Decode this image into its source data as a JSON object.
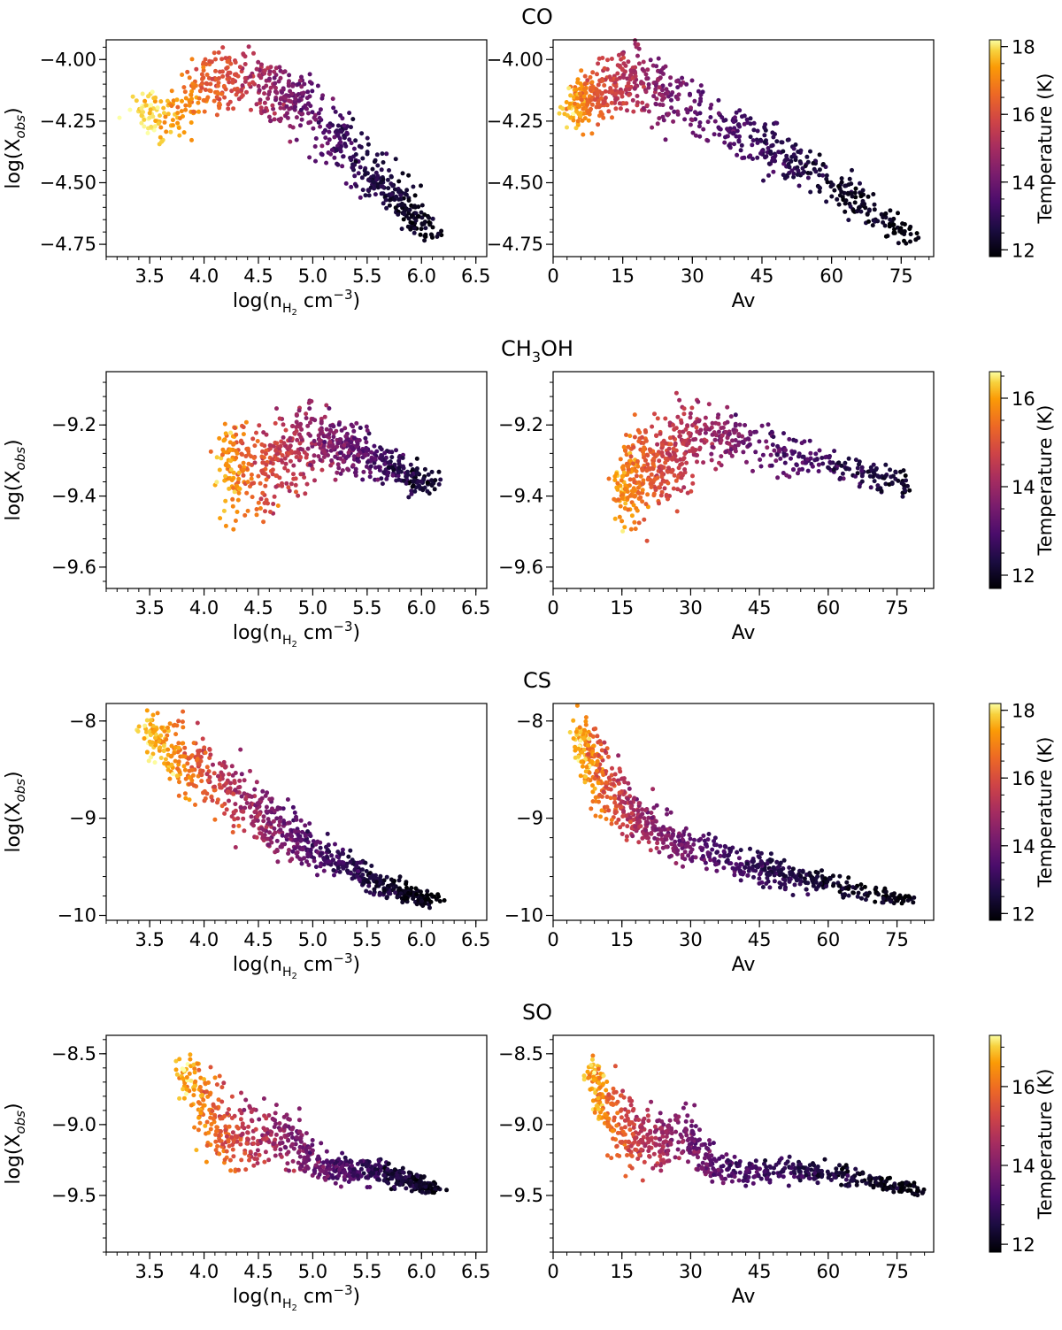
{
  "chart_data": [
    {
      "type": "scatter",
      "molecule": "CO",
      "title": "CO",
      "ylabel": "log(X_obs)",
      "ylabel_parts": {
        "main": "log(X",
        "sub": "obs",
        "close": ")"
      },
      "ylim": [
        -4.8,
        -3.92
      ],
      "yticks": [
        -4.75,
        -4.5,
        -4.25,
        -4.0
      ],
      "ytick_labels": [
        "−4.75",
        "−4.50",
        "−4.25",
        "−4.00"
      ],
      "colorbar": {
        "label": "Temperature (K)",
        "range": [
          11.8,
          18.2
        ],
        "ticks": [
          12,
          14,
          16,
          18
        ],
        "tick_labels": [
          "12",
          "14",
          "16",
          "18"
        ]
      },
      "panels": [
        {
          "xlabel": "log(n_H2 cm^-3)",
          "xlim": [
            3.1,
            6.6
          ],
          "xticks": [
            3.5,
            4.0,
            4.5,
            5.0,
            5.5,
            6.0,
            6.5
          ],
          "xtick_labels": [
            "3.5",
            "4.0",
            "4.5",
            "5.0",
            "5.5",
            "6.0",
            "6.5"
          ],
          "trend": [
            [
              3.4,
              -4.2,
              18.2
            ],
            [
              3.7,
              -4.25,
              17.5
            ],
            [
              4.0,
              -4.1,
              16.5
            ],
            [
              4.3,
              -4.08,
              15.8
            ],
            [
              4.6,
              -4.12,
              14.8
            ],
            [
              4.9,
              -4.18,
              14.0
            ],
            [
              5.2,
              -4.32,
              13.3
            ],
            [
              5.5,
              -4.45,
              12.8
            ],
            [
              5.8,
              -4.58,
              12.3
            ],
            [
              6.1,
              -4.72,
              11.9
            ]
          ],
          "spread": [
            0.07,
            0.1,
            0.13,
            0.14,
            0.14,
            0.14,
            0.13,
            0.12,
            0.09,
            0.05
          ],
          "xjit": 0.14,
          "n": 720
        },
        {
          "xlabel": "Av",
          "xlim": [
            0,
            82
          ],
          "xticks": [
            0,
            15,
            30,
            45,
            60,
            75
          ],
          "xtick_labels": [
            "0",
            "15",
            "30",
            "45",
            "60",
            "75"
          ],
          "trend": [
            [
              3,
              -4.2,
              18.0
            ],
            [
              7,
              -4.18,
              16.8
            ],
            [
              12,
              -4.1,
              15.8
            ],
            [
              18,
              -4.08,
              15.0
            ],
            [
              25,
              -4.15,
              14.2
            ],
            [
              35,
              -4.25,
              13.6
            ],
            [
              45,
              -4.35,
              13.0
            ],
            [
              55,
              -4.45,
              12.6
            ],
            [
              65,
              -4.57,
              12.2
            ],
            [
              78,
              -4.73,
              11.9
            ]
          ],
          "spread": [
            0.07,
            0.12,
            0.14,
            0.14,
            0.13,
            0.11,
            0.12,
            0.1,
            0.08,
            0.05
          ],
          "xjit": 2.5,
          "n": 720
        }
      ]
    },
    {
      "type": "scatter",
      "molecule": "CH3OH",
      "title": "CH3OH",
      "title_parts": {
        "a": "CH",
        "sub": "3",
        "b": "OH"
      },
      "ylabel": "log(X_obs)",
      "ylabel_parts": {
        "main": "log(X",
        "sub": "obs",
        "close": ")"
      },
      "ylim": [
        -9.66,
        -9.05
      ],
      "yticks": [
        -9.6,
        -9.4,
        -9.2
      ],
      "ytick_labels": [
        "−9.6",
        "−9.4",
        "−9.2"
      ],
      "colorbar": {
        "label": "Temperature (K)",
        "range": [
          11.7,
          16.6
        ],
        "ticks": [
          12,
          14,
          16
        ],
        "tick_labels": [
          "12",
          "14",
          "16"
        ]
      },
      "panels": [
        {
          "xlabel": "log(n_H2 cm^-3)",
          "xlim": [
            3.1,
            6.6
          ],
          "xticks": [
            3.5,
            4.0,
            4.5,
            5.0,
            5.5,
            6.0,
            6.5
          ],
          "xtick_labels": [
            "3.5",
            "4.0",
            "4.5",
            "5.0",
            "5.5",
            "6.0",
            "6.5"
          ],
          "trend": [
            [
              4.15,
              -9.3,
              16.2
            ],
            [
              4.3,
              -9.32,
              15.6
            ],
            [
              4.5,
              -9.34,
              15.0
            ],
            [
              4.7,
              -9.3,
              14.6
            ],
            [
              4.9,
              -9.26,
              14.2
            ],
            [
              5.1,
              -9.25,
              13.8
            ],
            [
              5.3,
              -9.26,
              13.4
            ],
            [
              5.5,
              -9.29,
              13.0
            ],
            [
              5.8,
              -9.33,
              12.5
            ],
            [
              6.1,
              -9.37,
              12.0
            ]
          ],
          "spread": [
            0.12,
            0.15,
            0.16,
            0.14,
            0.12,
            0.1,
            0.08,
            0.07,
            0.05,
            0.03
          ],
          "xjit": 0.12,
          "n": 650
        },
        {
          "xlabel": "Av",
          "xlim": [
            0,
            83
          ],
          "xticks": [
            0,
            15,
            30,
            45,
            60,
            75
          ],
          "xtick_labels": [
            "0",
            "15",
            "30",
            "45",
            "60",
            "75"
          ],
          "trend": [
            [
              14,
              -9.4,
              16.0
            ],
            [
              17,
              -9.36,
              15.6
            ],
            [
              20,
              -9.32,
              15.2
            ],
            [
              24,
              -9.3,
              14.8
            ],
            [
              28,
              -9.27,
              14.5
            ],
            [
              33,
              -9.24,
              14.2
            ],
            [
              40,
              -9.24,
              13.6
            ],
            [
              50,
              -9.28,
              13.1
            ],
            [
              62,
              -9.32,
              12.6
            ],
            [
              78,
              -9.37,
              12.0
            ]
          ],
          "spread": [
            0.1,
            0.14,
            0.16,
            0.14,
            0.13,
            0.1,
            0.08,
            0.06,
            0.05,
            0.04
          ],
          "xjit": 2.0,
          "n": 650
        }
      ]
    },
    {
      "type": "scatter",
      "molecule": "CS",
      "title": "CS",
      "ylabel": "log(X_obs)",
      "ylabel_parts": {
        "main": "log(X",
        "sub": "obs",
        "close": ")"
      },
      "ylim": [
        -10.05,
        -7.82
      ],
      "yticks": [
        -10,
        -9,
        -8
      ],
      "ytick_labels": [
        "−10",
        "−9",
        "−8"
      ],
      "colorbar": {
        "label": "Temperature (K)",
        "range": [
          11.8,
          18.2
        ],
        "ticks": [
          12,
          14,
          16,
          18
        ],
        "tick_labels": [
          "12",
          "14",
          "16",
          "18"
        ]
      },
      "panels": [
        {
          "xlabel": "log(n_H2 cm^-3)",
          "xlim": [
            3.1,
            6.6
          ],
          "xticks": [
            3.5,
            4.0,
            4.5,
            5.0,
            5.5,
            6.0,
            6.5
          ],
          "xtick_labels": [
            "3.5",
            "4.0",
            "4.5",
            "5.0",
            "5.5",
            "6.0",
            "6.5"
          ],
          "trend": [
            [
              3.45,
              -8.1,
              18.0
            ],
            [
              3.7,
              -8.3,
              17.2
            ],
            [
              4.0,
              -8.5,
              16.2
            ],
            [
              4.3,
              -8.8,
              15.2
            ],
            [
              4.6,
              -9.05,
              14.4
            ],
            [
              4.9,
              -9.25,
              13.7
            ],
            [
              5.2,
              -9.45,
              13.1
            ],
            [
              5.5,
              -9.6,
              12.6
            ],
            [
              5.8,
              -9.75,
              12.2
            ],
            [
              6.1,
              -9.85,
              11.9
            ]
          ],
          "spread": [
            0.2,
            0.4,
            0.42,
            0.38,
            0.3,
            0.25,
            0.18,
            0.15,
            0.1,
            0.06
          ],
          "xjit": 0.12,
          "n": 760
        },
        {
          "xlabel": "Av",
          "xlim": [
            0,
            83
          ],
          "xticks": [
            0,
            15,
            30,
            45,
            60,
            75
          ],
          "xtick_labels": [
            "0",
            "15",
            "30",
            "45",
            "60",
            "75"
          ],
          "trend": [
            [
              5,
              -8.1,
              18.0
            ],
            [
              8,
              -8.4,
              17.0
            ],
            [
              12,
              -8.7,
              16.0
            ],
            [
              17,
              -8.95,
              15.2
            ],
            [
              23,
              -9.15,
              14.5
            ],
            [
              30,
              -9.28,
              13.8
            ],
            [
              40,
              -9.45,
              13.2
            ],
            [
              50,
              -9.58,
              12.7
            ],
            [
              62,
              -9.7,
              12.3
            ],
            [
              78,
              -9.85,
              11.9
            ]
          ],
          "spread": [
            0.2,
            0.4,
            0.4,
            0.35,
            0.28,
            0.22,
            0.18,
            0.14,
            0.12,
            0.06
          ],
          "xjit": 2.2,
          "n": 760
        }
      ]
    },
    {
      "type": "scatter",
      "molecule": "SO",
      "title": "SO",
      "ylabel": "log(X_obs)",
      "ylabel_parts": {
        "main": "log(X",
        "sub": "obs",
        "close": ")"
      },
      "ylim": [
        -9.9,
        -8.37
      ],
      "yticks": [
        -9.5,
        -9.0,
        -8.5
      ],
      "ytick_labels": [
        "−9.5",
        "−9.0",
        "−8.5"
      ],
      "colorbar": {
        "label": "Temperature (K)",
        "range": [
          11.8,
          17.3
        ],
        "ticks": [
          12,
          14,
          16
        ],
        "tick_labels": [
          "12",
          "14",
          "16"
        ]
      },
      "panels": [
        {
          "xlabel": "log(n_H2 cm^-3)",
          "xlim": [
            3.1,
            6.6
          ],
          "xticks": [
            3.5,
            4.0,
            4.5,
            5.0,
            5.5,
            6.0,
            6.5
          ],
          "xtick_labels": [
            "3.5",
            "4.0",
            "4.5",
            "5.0",
            "5.5",
            "6.0",
            "6.5"
          ],
          "trend": [
            [
              3.8,
              -8.6,
              17.0
            ],
            [
              4.0,
              -8.85,
              16.2
            ],
            [
              4.2,
              -9.05,
              15.5
            ],
            [
              4.5,
              -9.1,
              14.7
            ],
            [
              4.8,
              -9.1,
              14.1
            ],
            [
              5.0,
              -9.28,
              13.7
            ],
            [
              5.3,
              -9.33,
              13.2
            ],
            [
              5.6,
              -9.32,
              12.7
            ],
            [
              5.9,
              -9.4,
              12.3
            ],
            [
              6.15,
              -9.46,
              11.9
            ]
          ],
          "spread": [
            0.12,
            0.26,
            0.3,
            0.24,
            0.2,
            0.12,
            0.1,
            0.1,
            0.07,
            0.04
          ],
          "xjit": 0.12,
          "n": 720
        },
        {
          "xlabel": "Av",
          "xlim": [
            0,
            83
          ],
          "xticks": [
            0,
            15,
            30,
            45,
            60,
            75
          ],
          "xtick_labels": [
            "0",
            "15",
            "30",
            "45",
            "60",
            "75"
          ],
          "trend": [
            [
              8,
              -8.6,
              17.0
            ],
            [
              12,
              -8.9,
              16.0
            ],
            [
              17,
              -9.1,
              15.2
            ],
            [
              23,
              -9.12,
              14.5
            ],
            [
              29,
              -9.08,
              14.0
            ],
            [
              35,
              -9.3,
              13.5
            ],
            [
              45,
              -9.33,
              13.0
            ],
            [
              55,
              -9.32,
              12.6
            ],
            [
              67,
              -9.38,
              12.2
            ],
            [
              80,
              -9.47,
              11.9
            ]
          ],
          "spread": [
            0.12,
            0.26,
            0.3,
            0.24,
            0.2,
            0.12,
            0.1,
            0.09,
            0.07,
            0.04
          ],
          "xjit": 2.0,
          "n": 720
        }
      ]
    }
  ]
}
